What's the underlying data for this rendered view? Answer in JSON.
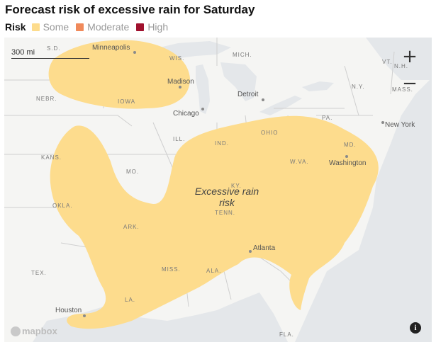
{
  "title": "Forecast risk of excessive rain for Saturday",
  "legend": {
    "title": "Risk",
    "items": [
      {
        "label": "Some",
        "color": "#fddc8d"
      },
      {
        "label": "Moderate",
        "color": "#f08a5b"
      },
      {
        "label": "High",
        "color": "#a0112e"
      }
    ]
  },
  "map": {
    "scale_label": "300 mi",
    "zoom_in": "+",
    "zoom_out": "−",
    "attribution": "mapbox",
    "info": "i",
    "area_label_line1": "Excessive rain",
    "area_label_line2": "risk",
    "states": [
      "S.D.",
      "WIS.",
      "MICH.",
      "NEBR.",
      "IOWA",
      "ILL.",
      "IND.",
      "OHIO",
      "PA.",
      "N.Y.",
      "VT.",
      "N.H.",
      "MASS.",
      "KANS.",
      "MO.",
      "KY.",
      "W.VA.",
      "MD.",
      "OKLA.",
      "ARK.",
      "TENN.",
      "TEX.",
      "MISS.",
      "ALA.",
      "LA.",
      "FLA."
    ],
    "cities": [
      "Minneapolis",
      "Madison",
      "Detroit",
      "Chicago",
      "New York",
      "Washington",
      "Atlanta",
      "Houston"
    ]
  }
}
